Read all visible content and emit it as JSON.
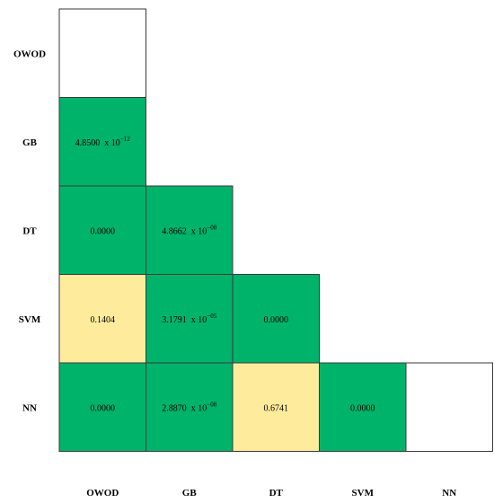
{
  "chart_data": {
    "type": "heatmap",
    "labels": [
      "OWOD",
      "GB",
      "DT",
      "SVM",
      "NN"
    ],
    "colors": {
      "significant": "#00b36b",
      "not_significant": "#ffeb9c",
      "empty": "#ffffff"
    },
    "cells": [
      {
        "row": "OWOD",
        "col": "OWOD",
        "mantissa": "",
        "exponent": "",
        "category": "empty"
      },
      {
        "row": "GB",
        "col": "OWOD",
        "mantissa": "4.8500",
        "exponent": "−12",
        "category": "significant"
      },
      {
        "row": "DT",
        "col": "OWOD",
        "mantissa": "0.0000",
        "exponent": "",
        "category": "significant"
      },
      {
        "row": "DT",
        "col": "GB",
        "mantissa": "4.8662",
        "exponent": "−08",
        "category": "significant"
      },
      {
        "row": "SVM",
        "col": "OWOD",
        "mantissa": "0.1404",
        "exponent": "",
        "category": "not_significant"
      },
      {
        "row": "SVM",
        "col": "GB",
        "mantissa": "3.1791",
        "exponent": "−05",
        "category": "significant"
      },
      {
        "row": "SVM",
        "col": "DT",
        "mantissa": "0.0000",
        "exponent": "",
        "category": "significant"
      },
      {
        "row": "NN",
        "col": "OWOD",
        "mantissa": "0.0000",
        "exponent": "",
        "category": "significant"
      },
      {
        "row": "NN",
        "col": "GB",
        "mantissa": "2.8870",
        "exponent": "−08",
        "category": "significant"
      },
      {
        "row": "NN",
        "col": "DT",
        "mantissa": "0.6741",
        "exponent": "",
        "category": "not_significant"
      },
      {
        "row": "NN",
        "col": "SVM",
        "mantissa": "0.0000",
        "exponent": "",
        "category": "significant"
      },
      {
        "row": "NN",
        "col": "NN",
        "mantissa": "",
        "exponent": "",
        "category": "empty"
      }
    ]
  }
}
